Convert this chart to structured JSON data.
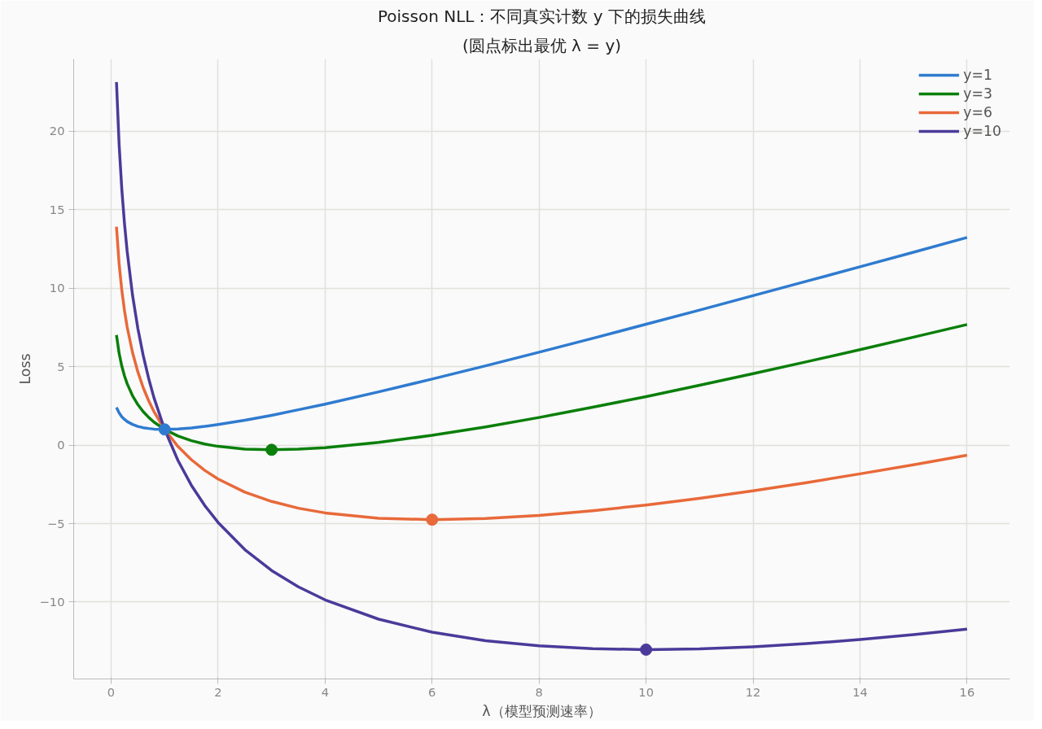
{
  "chart_data": {
    "type": "line",
    "title": "Poisson NLL：不同真实计数 y 下的损失曲线",
    "subtitle": "(圆点标出最优 λ = y)",
    "xlabel": "λ（模型预测速率）",
    "ylabel": "Loss",
    "x": [
      0.1,
      0.15,
      0.2,
      0.25,
      0.3,
      0.4,
      0.5,
      0.6,
      0.7,
      0.8,
      1,
      1.25,
      1.5,
      1.75,
      2,
      2.5,
      3,
      3.5,
      4,
      5,
      6,
      7,
      8,
      9,
      10,
      11,
      12,
      13,
      14,
      15,
      16
    ],
    "series": [
      {
        "name": "y=1",
        "color": "#2f7bd0",
        "values": [
          2.4,
          2.05,
          1.81,
          1.64,
          1.5,
          1.32,
          1.19,
          1.11,
          1.06,
          1.02,
          1.0,
          1.03,
          1.09,
          1.19,
          1.31,
          1.58,
          1.9,
          2.25,
          2.61,
          3.39,
          4.21,
          5.05,
          5.92,
          6.8,
          7.7,
          8.6,
          9.52,
          10.44,
          11.36,
          12.29,
          13.23
        ]
      },
      {
        "name": "y=3",
        "color": "#0a7f0a",
        "values": [
          7.01,
          5.84,
          5.03,
          4.41,
          3.91,
          3.15,
          2.58,
          2.13,
          1.77,
          1.47,
          1.0,
          0.58,
          0.28,
          0.07,
          -0.08,
          -0.25,
          -0.3,
          -0.26,
          -0.16,
          0.17,
          0.62,
          1.16,
          1.76,
          2.41,
          3.09,
          3.81,
          4.55,
          5.31,
          6.08,
          6.88,
          7.68
        ]
      },
      {
        "name": "y=6",
        "color": "#e8693a",
        "values": [
          13.92,
          11.53,
          9.86,
          8.57,
          7.52,
          5.9,
          4.66,
          3.66,
          2.84,
          2.14,
          1.0,
          -0.09,
          -0.93,
          -1.61,
          -2.16,
          -3.0,
          -3.59,
          -4.02,
          -4.32,
          -4.66,
          -4.75,
          -4.68,
          -4.48,
          -4.18,
          -3.82,
          -3.39,
          -2.91,
          -2.39,
          -1.83,
          -1.25,
          -0.64
        ]
      },
      {
        "name": "y=10",
        "color": "#4b3a9a",
        "values": [
          23.13,
          19.12,
          16.29,
          14.11,
          12.34,
          9.56,
          7.43,
          5.71,
          4.27,
          3.03,
          1.0,
          -0.98,
          -2.56,
          -3.85,
          -4.93,
          -6.66,
          -7.99,
          -9.03,
          -9.86,
          -11.09,
          -11.92,
          -12.46,
          -12.79,
          -12.97,
          -13.03,
          -12.98,
          -12.85,
          -12.65,
          -12.39,
          -12.08,
          -11.73
        ]
      },
      {
        "type": "scatter",
        "color": "#2f7bd0",
        "x": [
          1
        ],
        "values": [
          1.0
        ]
      },
      {
        "type": "scatter",
        "color": "#0a7f0a",
        "x": [
          3
        ],
        "values": [
          -0.3
        ]
      },
      {
        "type": "scatter",
        "color": "#e8693a",
        "x": [
          6
        ],
        "values": [
          -4.75
        ]
      },
      {
        "type": "scatter",
        "color": "#4b3a9a",
        "x": [
          10
        ],
        "values": [
          -13.03
        ]
      }
    ],
    "xlim": [
      -0.7,
      16.8
    ],
    "ylim": [
      -14.9,
      24.6
    ],
    "xticks": [
      0,
      2,
      4,
      6,
      8,
      10,
      12,
      14,
      16
    ],
    "yticks": [
      -10,
      -5,
      0,
      5,
      10,
      15,
      20
    ],
    "grid": true,
    "legend": "top right",
    "line_style": "solid"
  }
}
